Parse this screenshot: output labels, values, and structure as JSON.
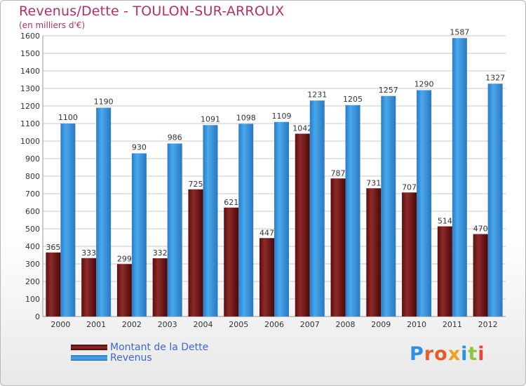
{
  "title": "Revenus/Dette - TOULON-SUR-ARROUX",
  "subtitle": "(en milliers d'€)",
  "legend": [
    {
      "label": "Montant de la Dette",
      "color": "#7a1c1c"
    },
    {
      "label": "Revenus",
      "color": "#3d9be0"
    }
  ],
  "logo_text": "Proxiti",
  "colors": {
    "title": "#b0306a",
    "dette": "#7a1c1c",
    "revenus": "#3d9be0",
    "grid": "#c8c8c8",
    "logo": [
      "#2f8fe0",
      "#e85a2a",
      "#e85a2a",
      "#f0a020",
      "#2f8fe0",
      "#8cc63f",
      "#e8423a"
    ]
  },
  "chart_data": {
    "type": "bar",
    "categories": [
      "2000",
      "2001",
      "2002",
      "2003",
      "2004",
      "2005",
      "2006",
      "2007",
      "2008",
      "2009",
      "2010",
      "2011",
      "2012"
    ],
    "series": [
      {
        "name": "Montant de la Dette",
        "values": [
          365,
          333,
          299,
          332,
          725,
          621,
          447,
          1042,
          787,
          731,
          707,
          514,
          470
        ]
      },
      {
        "name": "Revenus",
        "values": [
          1100,
          1190,
          930,
          986,
          1091,
          1098,
          1109,
          1231,
          1205,
          1257,
          1290,
          1587,
          1327
        ]
      }
    ],
    "yticks": [
      0,
      100,
      200,
      300,
      400,
      500,
      600,
      700,
      800,
      900,
      1000,
      1100,
      1200,
      1300,
      1400,
      1500,
      1600
    ],
    "ylim": [
      0,
      1600
    ],
    "grid": true,
    "legend_position": "bottom-left"
  }
}
